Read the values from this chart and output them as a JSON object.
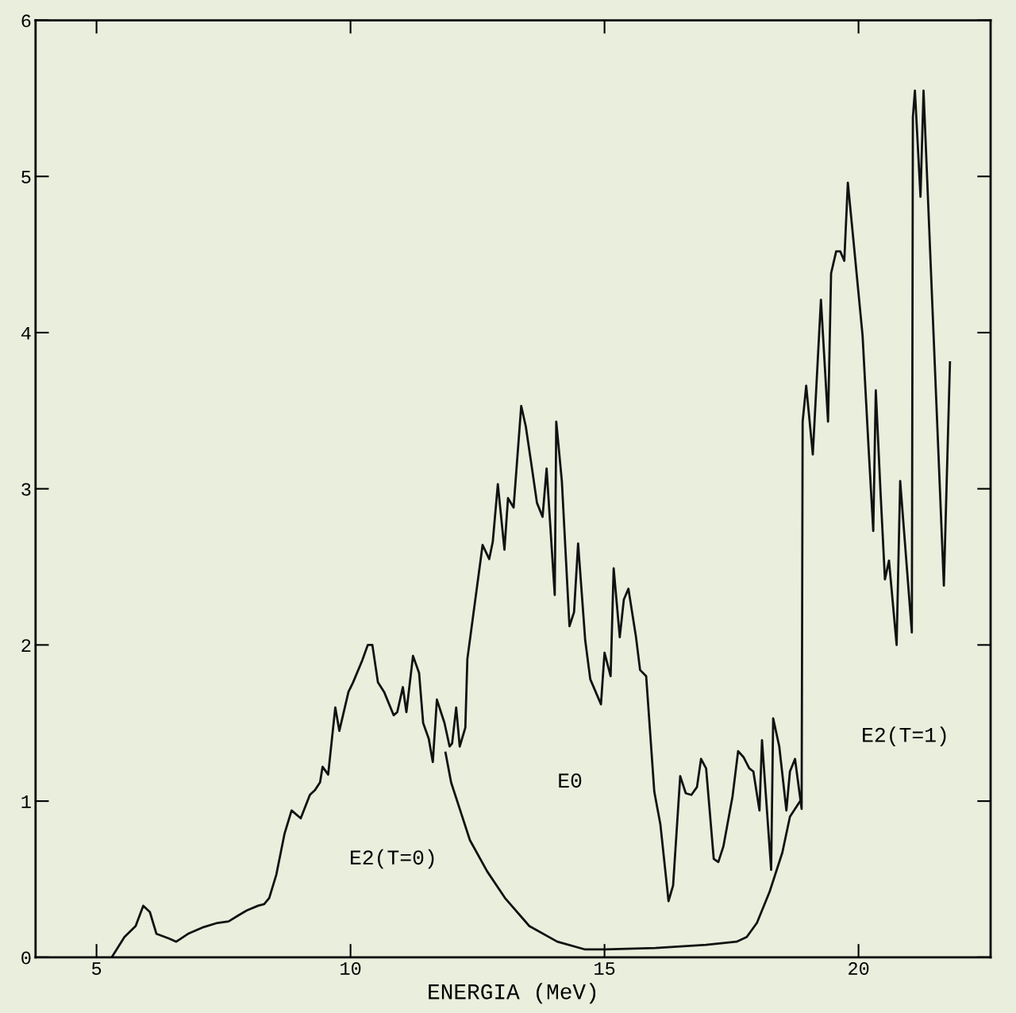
{
  "chart_data": {
    "type": "line",
    "xlabel": "ENERGIA (MeV)",
    "xlim": [
      3.8,
      22.6
    ],
    "xticks": [
      5,
      10,
      15,
      20
    ],
    "ylim": [
      0,
      6
    ],
    "yticks": [
      0,
      1,
      2,
      3,
      4,
      5,
      6
    ],
    "grid": false,
    "legend": false,
    "series": [
      {
        "color": "#111111",
        "x": [
          5.3,
          5.55,
          5.77,
          5.92,
          6.05,
          6.18,
          6.43,
          6.57,
          6.8,
          7.08,
          7.38,
          7.6,
          7.8,
          7.96,
          8.18,
          8.3,
          8.4,
          8.54,
          8.7,
          8.84,
          9.02,
          9.2,
          9.3,
          9.4,
          9.45,
          9.56,
          9.7,
          9.78,
          9.96,
          10.05,
          10.23,
          10.34,
          10.43,
          10.54,
          10.66,
          10.85,
          10.92,
          11.03,
          11.1,
          11.23,
          11.35,
          11.43,
          11.54,
          11.62,
          11.7,
          11.85,
          11.95,
          12.0,
          12.08,
          12.15,
          12.26,
          12.3,
          12.6,
          12.73,
          12.8,
          12.9,
          13.03,
          13.1,
          13.21,
          13.36,
          13.45,
          13.55,
          13.67,
          13.78,
          13.86,
          14.02,
          14.05,
          14.16,
          14.31,
          14.4,
          14.48,
          14.62,
          14.72,
          14.93,
          15.0,
          15.12,
          15.18,
          15.3,
          15.38,
          15.47,
          15.62,
          15.7,
          15.82,
          15.98,
          16.1,
          16.26,
          16.35,
          16.49,
          16.6,
          16.71,
          16.82,
          16.9,
          17.0,
          17.15,
          17.24,
          17.34,
          17.52,
          17.63,
          17.74,
          17.85,
          17.93,
          18.05,
          18.1,
          18.28,
          18.32,
          18.44,
          18.58,
          18.65,
          18.75,
          18.88,
          18.9,
          18.97,
          19.1,
          19.26,
          19.4,
          19.46,
          19.56,
          19.64,
          19.72,
          19.79,
          19.9,
          20.08,
          20.2,
          20.29,
          20.34,
          20.43,
          20.52,
          20.6,
          20.75,
          20.82,
          21.05,
          21.07,
          21.11,
          21.22,
          21.28,
          21.68,
          21.8
        ],
        "values": [
          0,
          0.13,
          0.2,
          0.33,
          0.29,
          0.15,
          0.12,
          0.1,
          0.15,
          0.19,
          0.22,
          0.23,
          0.27,
          0.3,
          0.33,
          0.34,
          0.38,
          0.53,
          0.79,
          0.94,
          0.89,
          1.04,
          1.07,
          1.12,
          1.22,
          1.17,
          1.6,
          1.45,
          1.7,
          1.76,
          1.9,
          2.0,
          2.0,
          1.76,
          1.7,
          1.55,
          1.57,
          1.73,
          1.57,
          1.93,
          1.82,
          1.5,
          1.4,
          1.25,
          1.65,
          1.5,
          1.35,
          1.37,
          1.6,
          1.35,
          1.47,
          1.91,
          2.64,
          2.55,
          2.66,
          3.03,
          2.61,
          2.94,
          2.88,
          3.53,
          3.4,
          3.18,
          2.91,
          2.82,
          3.13,
          2.32,
          3.43,
          3.05,
          2.12,
          2.21,
          2.65,
          2.03,
          1.78,
          1.62,
          1.95,
          1.8,
          2.49,
          2.05,
          2.29,
          2.36,
          2.05,
          1.84,
          1.8,
          1.06,
          0.85,
          0.36,
          0.46,
          1.16,
          1.05,
          1.04,
          1.09,
          1.27,
          1.21,
          0.63,
          0.61,
          0.71,
          1.03,
          1.32,
          1.28,
          1.21,
          1.19,
          0.94,
          1.39,
          0.56,
          1.53,
          1.35,
          0.94,
          1.19,
          1.27,
          0.95,
          3.43,
          3.66,
          3.22,
          4.21,
          3.43,
          4.38,
          4.52,
          4.52,
          4.46,
          4.96,
          4.59,
          3.98,
          3.25,
          2.73,
          3.63,
          3.0,
          2.42,
          2.54,
          2.0,
          3.05,
          2.08,
          5.38,
          5.55,
          4.87,
          5.55,
          2.38,
          3.81
        ]
      },
      {
        "color": "#111111",
        "x": [
          11.87,
          11.98,
          12.35,
          12.69,
          13.04,
          13.52,
          14.07,
          14.62,
          15.0,
          16.0,
          17.0,
          17.6,
          17.8,
          18.0,
          18.25,
          18.5,
          18.65,
          18.85
        ],
        "values": [
          1.31,
          1.12,
          0.75,
          0.55,
          0.38,
          0.2,
          0.1,
          0.05,
          0.05,
          0.06,
          0.08,
          0.1,
          0.13,
          0.22,
          0.42,
          0.67,
          0.9,
          1.0
        ]
      }
    ],
    "annotations": [
      "E2(T=0)",
      "E0",
      "E2(T=1)"
    ]
  }
}
